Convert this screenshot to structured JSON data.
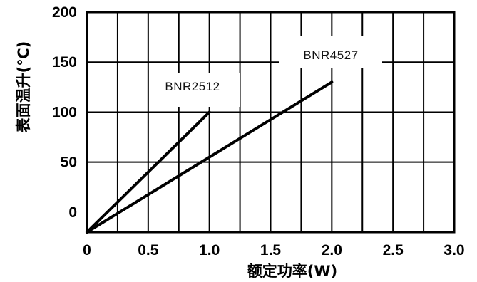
{
  "chart_data": {
    "type": "line",
    "title": "",
    "xlabel": "额定功率(W)",
    "ylabel": "表面温升(℃)",
    "xlim": [
      0,
      3.0
    ],
    "ylim": [
      -20,
      200
    ],
    "grid": true,
    "x_ticks": [
      0,
      0.5,
      1.0,
      1.5,
      2.0,
      2.5,
      3.0
    ],
    "x_tick_labels": [
      "0",
      "0.5",
      "1.0",
      "1.5",
      "2.0",
      "2.5",
      "3.0"
    ],
    "x_minor_gridlines": [
      0.25,
      0.75,
      1.25,
      1.75,
      2.25,
      2.75
    ],
    "y_ticks": [
      0,
      50,
      100,
      150,
      200
    ],
    "y_tick_labels": [
      "0",
      "50",
      "100",
      "150",
      "200"
    ],
    "series": [
      {
        "name": "BNR2512",
        "x": [
          0,
          1.0
        ],
        "y": [
          -20,
          100
        ]
      },
      {
        "name": "BNR4527",
        "x": [
          0,
          2.0
        ],
        "y": [
          -20,
          130
        ]
      }
    ]
  }
}
